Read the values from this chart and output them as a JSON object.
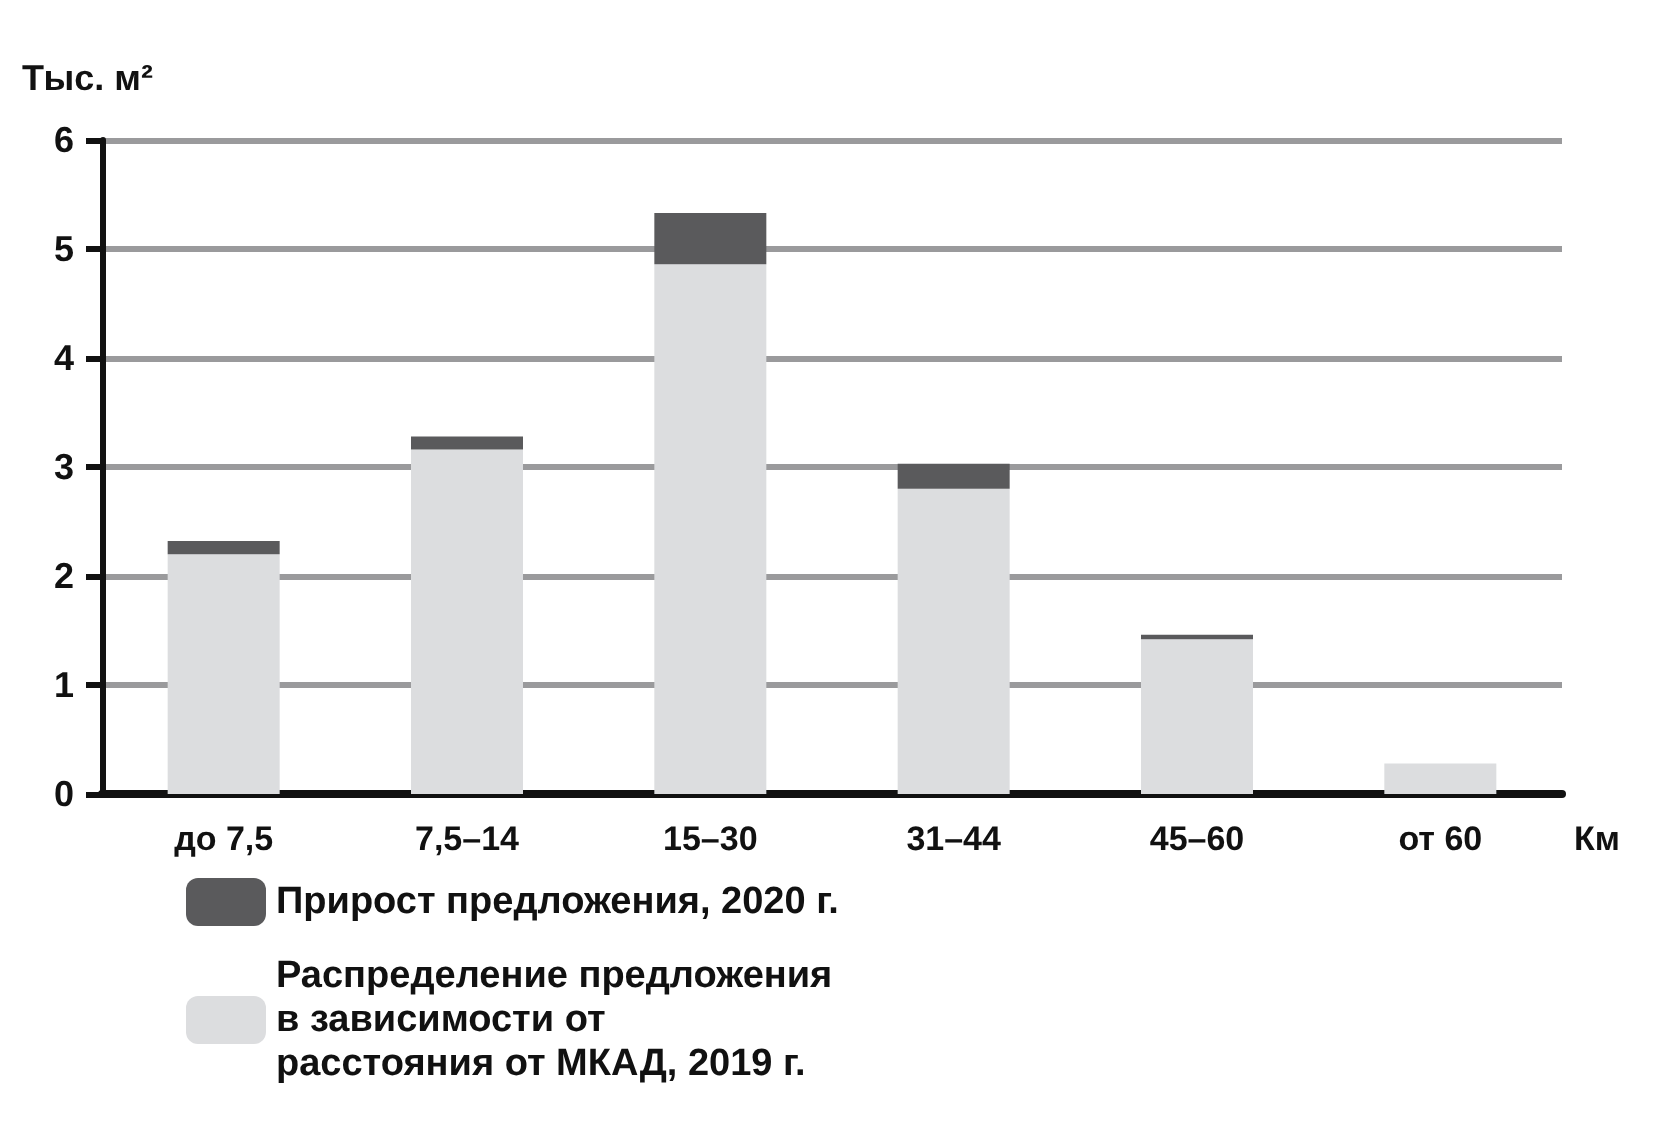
{
  "chart_data": {
    "type": "bar",
    "stacked": true,
    "ylabel": "Тыс. м²",
    "xlabel": "Км",
    "categories": [
      "до 7,5",
      "7,5–14",
      "15–30",
      "31–44",
      "45–60",
      "от 60"
    ],
    "series": [
      {
        "name": "Распределение предложения в зависимости от расстояния от МКАД, 2019 г.",
        "color": "#dcdddf",
        "values": [
          2.2,
          3.16,
          4.86,
          2.8,
          1.42,
          0.28
        ]
      },
      {
        "name": "Прирост предложения, 2020 г.",
        "color": "#5a5a5c",
        "values": [
          0.12,
          0.12,
          0.47,
          0.23,
          0.04,
          0
        ]
      }
    ],
    "ylim": [
      0,
      6
    ],
    "yticks": [
      0,
      1,
      2,
      3,
      4,
      5,
      6
    ],
    "grid": "y",
    "legend": "bottom left"
  }
}
